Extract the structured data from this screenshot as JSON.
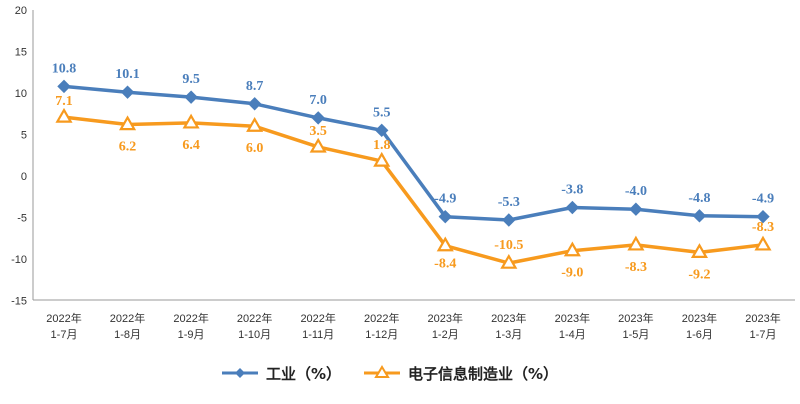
{
  "chart_data": {
    "type": "line",
    "title": "",
    "xlabel": "",
    "ylabel": "",
    "ylim": [
      -15,
      20
    ],
    "yticks": [
      20,
      15,
      10,
      5,
      0,
      -5,
      -10,
      -15
    ],
    "grid": false,
    "legend_position": "bottom",
    "categories": [
      [
        "2022年",
        "1-7月"
      ],
      [
        "2022年",
        "1-8月"
      ],
      [
        "2022年",
        "1-9月"
      ],
      [
        "2022年",
        "1-10月"
      ],
      [
        "2022年",
        "1-11月"
      ],
      [
        "2022年",
        "1-12月"
      ],
      [
        "2023年",
        "1-2月"
      ],
      [
        "2023年",
        "1-3月"
      ],
      [
        "2023年",
        "1-4月"
      ],
      [
        "2023年",
        "1-5月"
      ],
      [
        "2023年",
        "1-6月"
      ],
      [
        "2023年",
        "1-7月"
      ]
    ],
    "series": [
      {
        "name": "工业（%）",
        "color": "#4a7ebb",
        "marker": "diamond",
        "values": [
          10.8,
          10.1,
          9.5,
          8.7,
          7.0,
          5.5,
          -4.9,
          -5.3,
          -3.8,
          -4.0,
          -4.8,
          -4.9
        ],
        "labels": [
          "10.8",
          "10.1",
          "9.5",
          "8.7",
          "7.0",
          "5.5",
          "-4.9",
          "-5.3",
          "-3.8",
          "-4.0",
          "-4.8",
          "-4.9"
        ]
      },
      {
        "name": "电子信息制造业（%）",
        "color": "#f79a1e",
        "marker": "triangle",
        "values": [
          7.1,
          6.2,
          6.4,
          6.0,
          3.5,
          1.8,
          -8.4,
          -10.5,
          -9.0,
          -8.3,
          -9.2,
          -8.3
        ],
        "labels": [
          "7.1",
          "6.2",
          "6.4",
          "6.0",
          "3.5",
          "1.8",
          "-8.4",
          "-10.5",
          "-9.0",
          "-8.3",
          "-9.2",
          "-8.3"
        ]
      }
    ]
  }
}
